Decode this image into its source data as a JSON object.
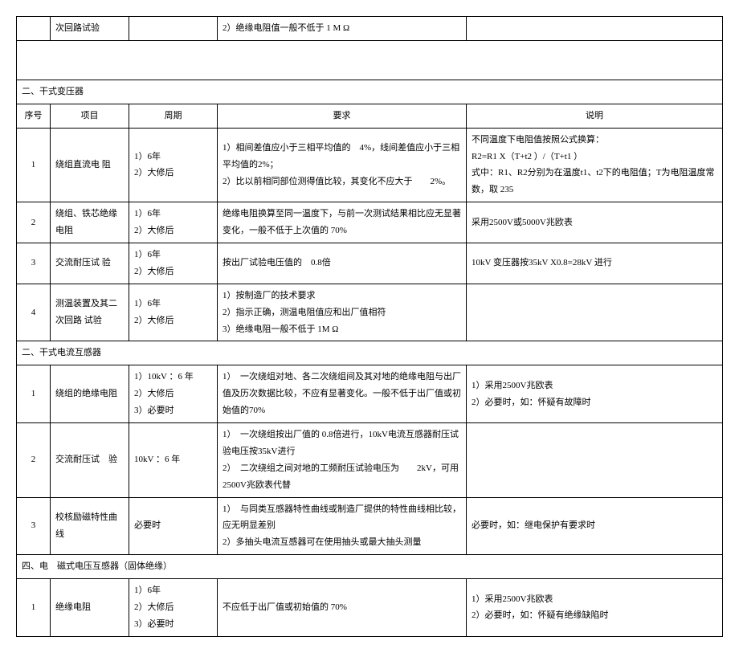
{
  "topRow": {
    "col2": "次回路试验",
    "col4": "2）绝缘电阻值一般不低于 1 M Ω"
  },
  "section2": {
    "title": "二、干式变压器",
    "header": {
      "no": "序号",
      "item": "项目",
      "period": "周期",
      "req": "要求",
      "note": "说明"
    },
    "rows": [
      {
        "no": "1",
        "item": "绕组直流电 阻",
        "period": "1）6年\n2）大修后",
        "req": "1）相间差值应小于三相平均值的　4%，线间差值应小于三相平均值的2%；\n2）比以前相同部位测得值比较，其变化不应大于　　2%。",
        "note": "不同温度下电阻值按照公式换算：\nR2=R1 X（T+t2 ）/（T+t1 ）\n式中：R1、R2分别为在温度t1、t2下的电阻值；T为电阻温度常数，取 235"
      },
      {
        "no": "2",
        "item": "绕组、铁芯绝缘电阻",
        "period": "1）6年\n2）大修后",
        "req": "绝缘电阻换算至同一温度下，与前一次测试结果相比应无显著变化，一般不低于上次值的 70%",
        "note": "采用2500V或5000V兆欧表"
      },
      {
        "no": "3",
        "item": "交流耐压试 验",
        "period": "1）6年\n2）大修后",
        "req": "按出厂试验电压值的　0.8倍",
        "note": "10kV 变压器按35kV X0.8=28kV 进行"
      },
      {
        "no": "4",
        "item": "测温装置及其二次回路 试验",
        "period": "1）6年\n2）大修后",
        "req": "1）按制造厂的技术要求\n2）指示正确，测温电阻值应和出厂值相符\n3）绝缘电阻一般不低于 1M Ω",
        "note": ""
      }
    ]
  },
  "section3": {
    "title": "二、干式电流互感器",
    "rows": [
      {
        "no": "1",
        "item": "绕组的绝缘电阻",
        "period": "1）10kV ：6 年\n2）大修后\n3）必要时",
        "req": "1）　一次绕组对地、各二次绕组间及其对地的绝缘电阻与出厂值及历次数据比较，不应有显著变化。一般不低于出厂值或初始值的70%",
        "note": "1）采用2500V兆欧表\n2）必要时，如：怀疑有故障时"
      },
      {
        "no": "2",
        "item": "交流耐压试　验",
        "period": "10kV ：6 年",
        "req": "1）　一次绕组按出厂值的 0.8倍进行，10kV电流互感器耐压试验电压按35kV进行\n2）　二次绕组之间对地的工频耐压试验电压为　　2kV，可用2500V兆欧表代替",
        "note": ""
      },
      {
        "no": "3",
        "item": "校核励磁特性曲线",
        "period": "必要时",
        "req": "1）　与同类互感器特性曲线或制造厂提供的特性曲线相比较，应无明显差别\n2）多抽头电流互感器可在使用抽头或最大抽头测量",
        "note": "必要时，如：继电保护有要求时"
      }
    ]
  },
  "section4": {
    "title": "四、电　磁式电压互感器（固体绝缘）",
    "rows": [
      {
        "no": "1",
        "item": "绝缘电阻",
        "period": "1）6年\n2）大修后\n3）必要时",
        "req": "不应低于出厂值或初始值的 70%",
        "note": "1）采用2500V兆欧表\n2）必要时，如：怀疑有绝缘缺陷时"
      }
    ]
  }
}
